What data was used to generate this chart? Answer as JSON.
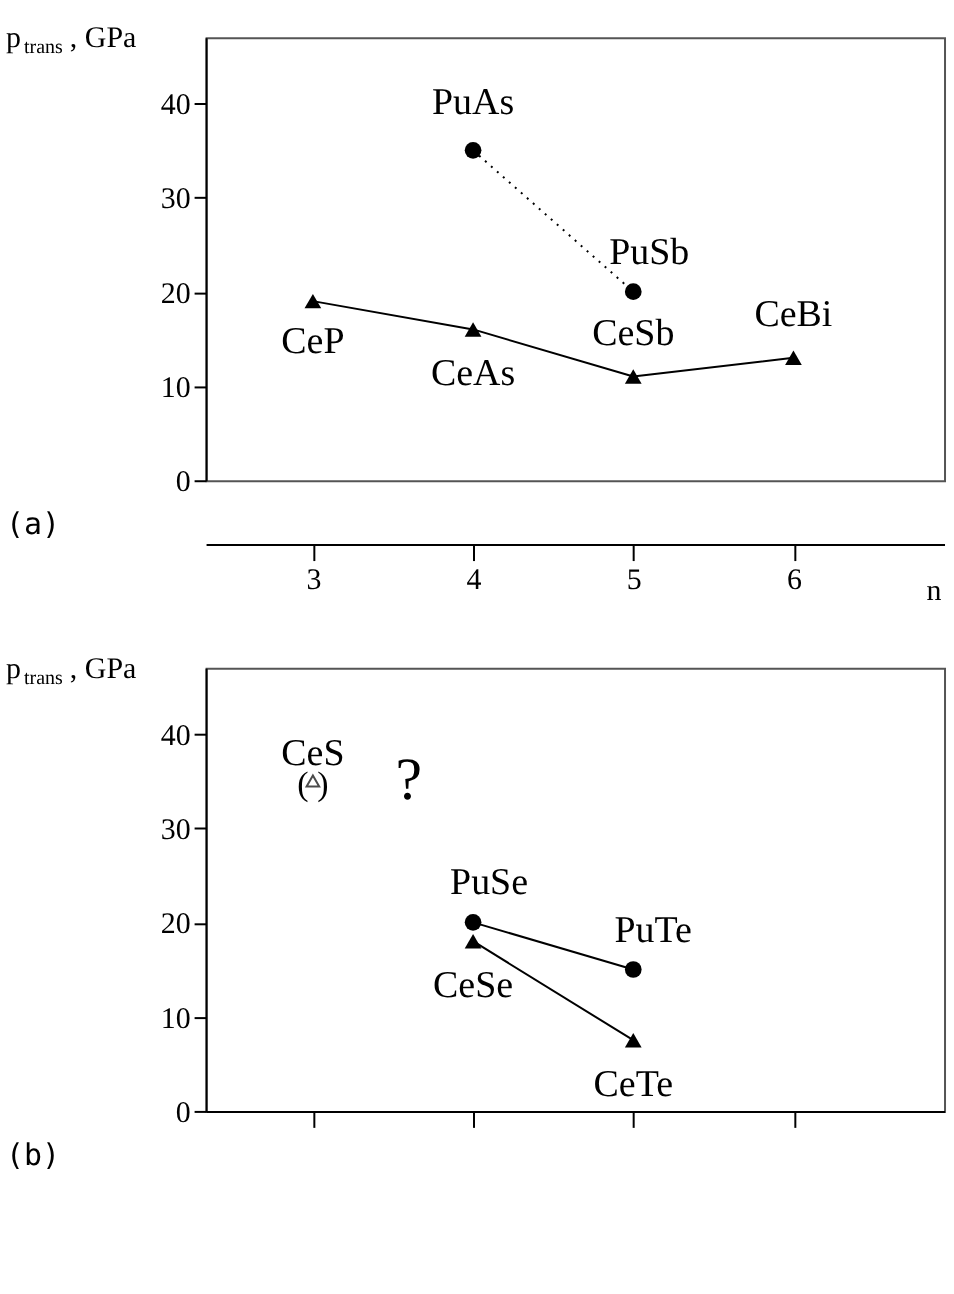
{
  "chart_data": [
    {
      "type": "line",
      "ylabel": "p$_{trans}$ , GPa",
      "xlabel": "n",
      "xlim": [
        2.33,
        6.94
      ],
      "xticks": [
        3,
        4,
        5,
        6
      ],
      "ylim": [
        0,
        47
      ],
      "yticks": [
        0,
        10,
        20,
        30,
        40
      ],
      "grid": false,
      "series": [
        {
          "marker": "triangle",
          "line_style": "solid",
          "color": "#000000",
          "x": [
            3,
            4,
            5,
            6
          ],
          "values": [
            19,
            16,
            11,
            13
          ]
        },
        {
          "marker": "circle",
          "line_style": "dotted",
          "color": "#000000",
          "x": [
            4,
            5
          ],
          "values": [
            35,
            20
          ]
        }
      ],
      "annotations": [
        {
          "text": "CeP",
          "x": 3,
          "y": 19
        },
        {
          "text": "CeAs",
          "x": 4,
          "y": 16
        },
        {
          "text": "CeSb",
          "x": 5,
          "y": 11
        },
        {
          "text": "CeBi",
          "x": 6,
          "y": 13
        },
        {
          "text": "PuAs",
          "x": 4,
          "y": 35
        },
        {
          "text": "PuSb",
          "x": 5,
          "y": 20
        },
        "(a)"
      ]
    },
    {
      "type": "line",
      "ylabel": "p$_{trans}$ , GPa",
      "xlim": [
        2.33,
        6.94
      ],
      "xticks": [
        {
          "value": 3,
          "label": null
        },
        {
          "value": 4,
          "label": null
        },
        {
          "value": 5,
          "label": null
        },
        {
          "value": 6,
          "label": null
        }
      ],
      "ylim": [
        0,
        47
      ],
      "yticks": [
        0,
        10,
        20,
        30,
        40
      ],
      "tick_labels": "y",
      "grid": false,
      "series": [
        {
          "marker": "circle",
          "line_style": "solid",
          "color": "#000000",
          "x": [
            4,
            5
          ],
          "values": [
            20,
            15
          ]
        },
        {
          "marker": "triangle",
          "line_style": "solid",
          "color": "#000000",
          "x": [
            4,
            5
          ],
          "values": [
            18,
            7.5
          ]
        },
        {
          "type": "scatter",
          "marker": "triangle",
          "color": "#000000",
          "x": [
            3
          ],
          "values": [
            35
          ]
        }
      ],
      "annotations": [
        {
          "text": "PuSe",
          "x": 4,
          "y": 20
        },
        {
          "text": "PuTe",
          "x": 5,
          "y": 15
        },
        {
          "text": "CeSe",
          "x": 4,
          "y": 18
        },
        {
          "text": "CeTe",
          "x": 5,
          "y": 7.5
        },
        {
          "text": "CeS",
          "x": 3,
          "y": 35
        },
        {
          "text": "(   )",
          "x": 3,
          "y": 35
        },
        {
          "text": "?",
          "x": 3,
          "y": 35
        },
        "(b)"
      ]
    }
  ]
}
